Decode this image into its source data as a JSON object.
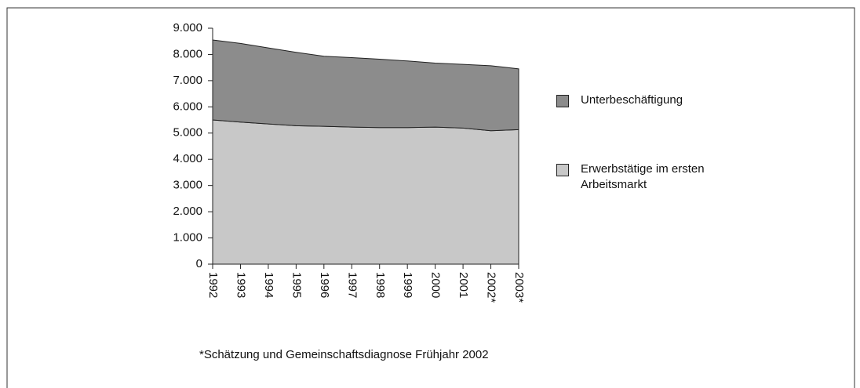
{
  "chart_data": {
    "type": "stacked-area",
    "categories": [
      "1992",
      "1993",
      "1994",
      "1995",
      "1996",
      "1997",
      "1998",
      "1999",
      "2000",
      "2001",
      "2002*",
      "2003*"
    ],
    "series": [
      {
        "name": "Erwerbstätige im ersten Arbeitsmarkt",
        "color": "#c8c8c8",
        "values": [
          5500,
          5420,
          5350,
          5280,
          5260,
          5230,
          5210,
          5210,
          5230,
          5190,
          5090,
          5130
        ]
      },
      {
        "name": "Unterbeschäftigung",
        "color": "#8c8c8c",
        "values": [
          3050,
          3000,
          2900,
          2800,
          2670,
          2650,
          2610,
          2540,
          2440,
          2430,
          2480,
          2320
        ]
      }
    ],
    "ylim": [
      0,
      9000
    ],
    "yticks": [
      0,
      {
        "value": 1000,
        "label": "1.000"
      },
      {
        "value": 2000,
        "label": "2.000"
      },
      {
        "value": 3000,
        "label": "3.000"
      },
      {
        "value": 4000,
        "label": "4.000"
      },
      {
        "value": 5000,
        "label": "5.000"
      },
      {
        "value": 6000,
        "label": "6.000"
      },
      {
        "value": 7000,
        "label": "7.000"
      },
      {
        "value": 8000,
        "label": "8.000"
      },
      {
        "value": 9000,
        "label": "9.000"
      }
    ],
    "legend_position": "right",
    "footnote": "*Schätzung und Gemeinschaftsdiagnose Frühjahr 2002"
  }
}
